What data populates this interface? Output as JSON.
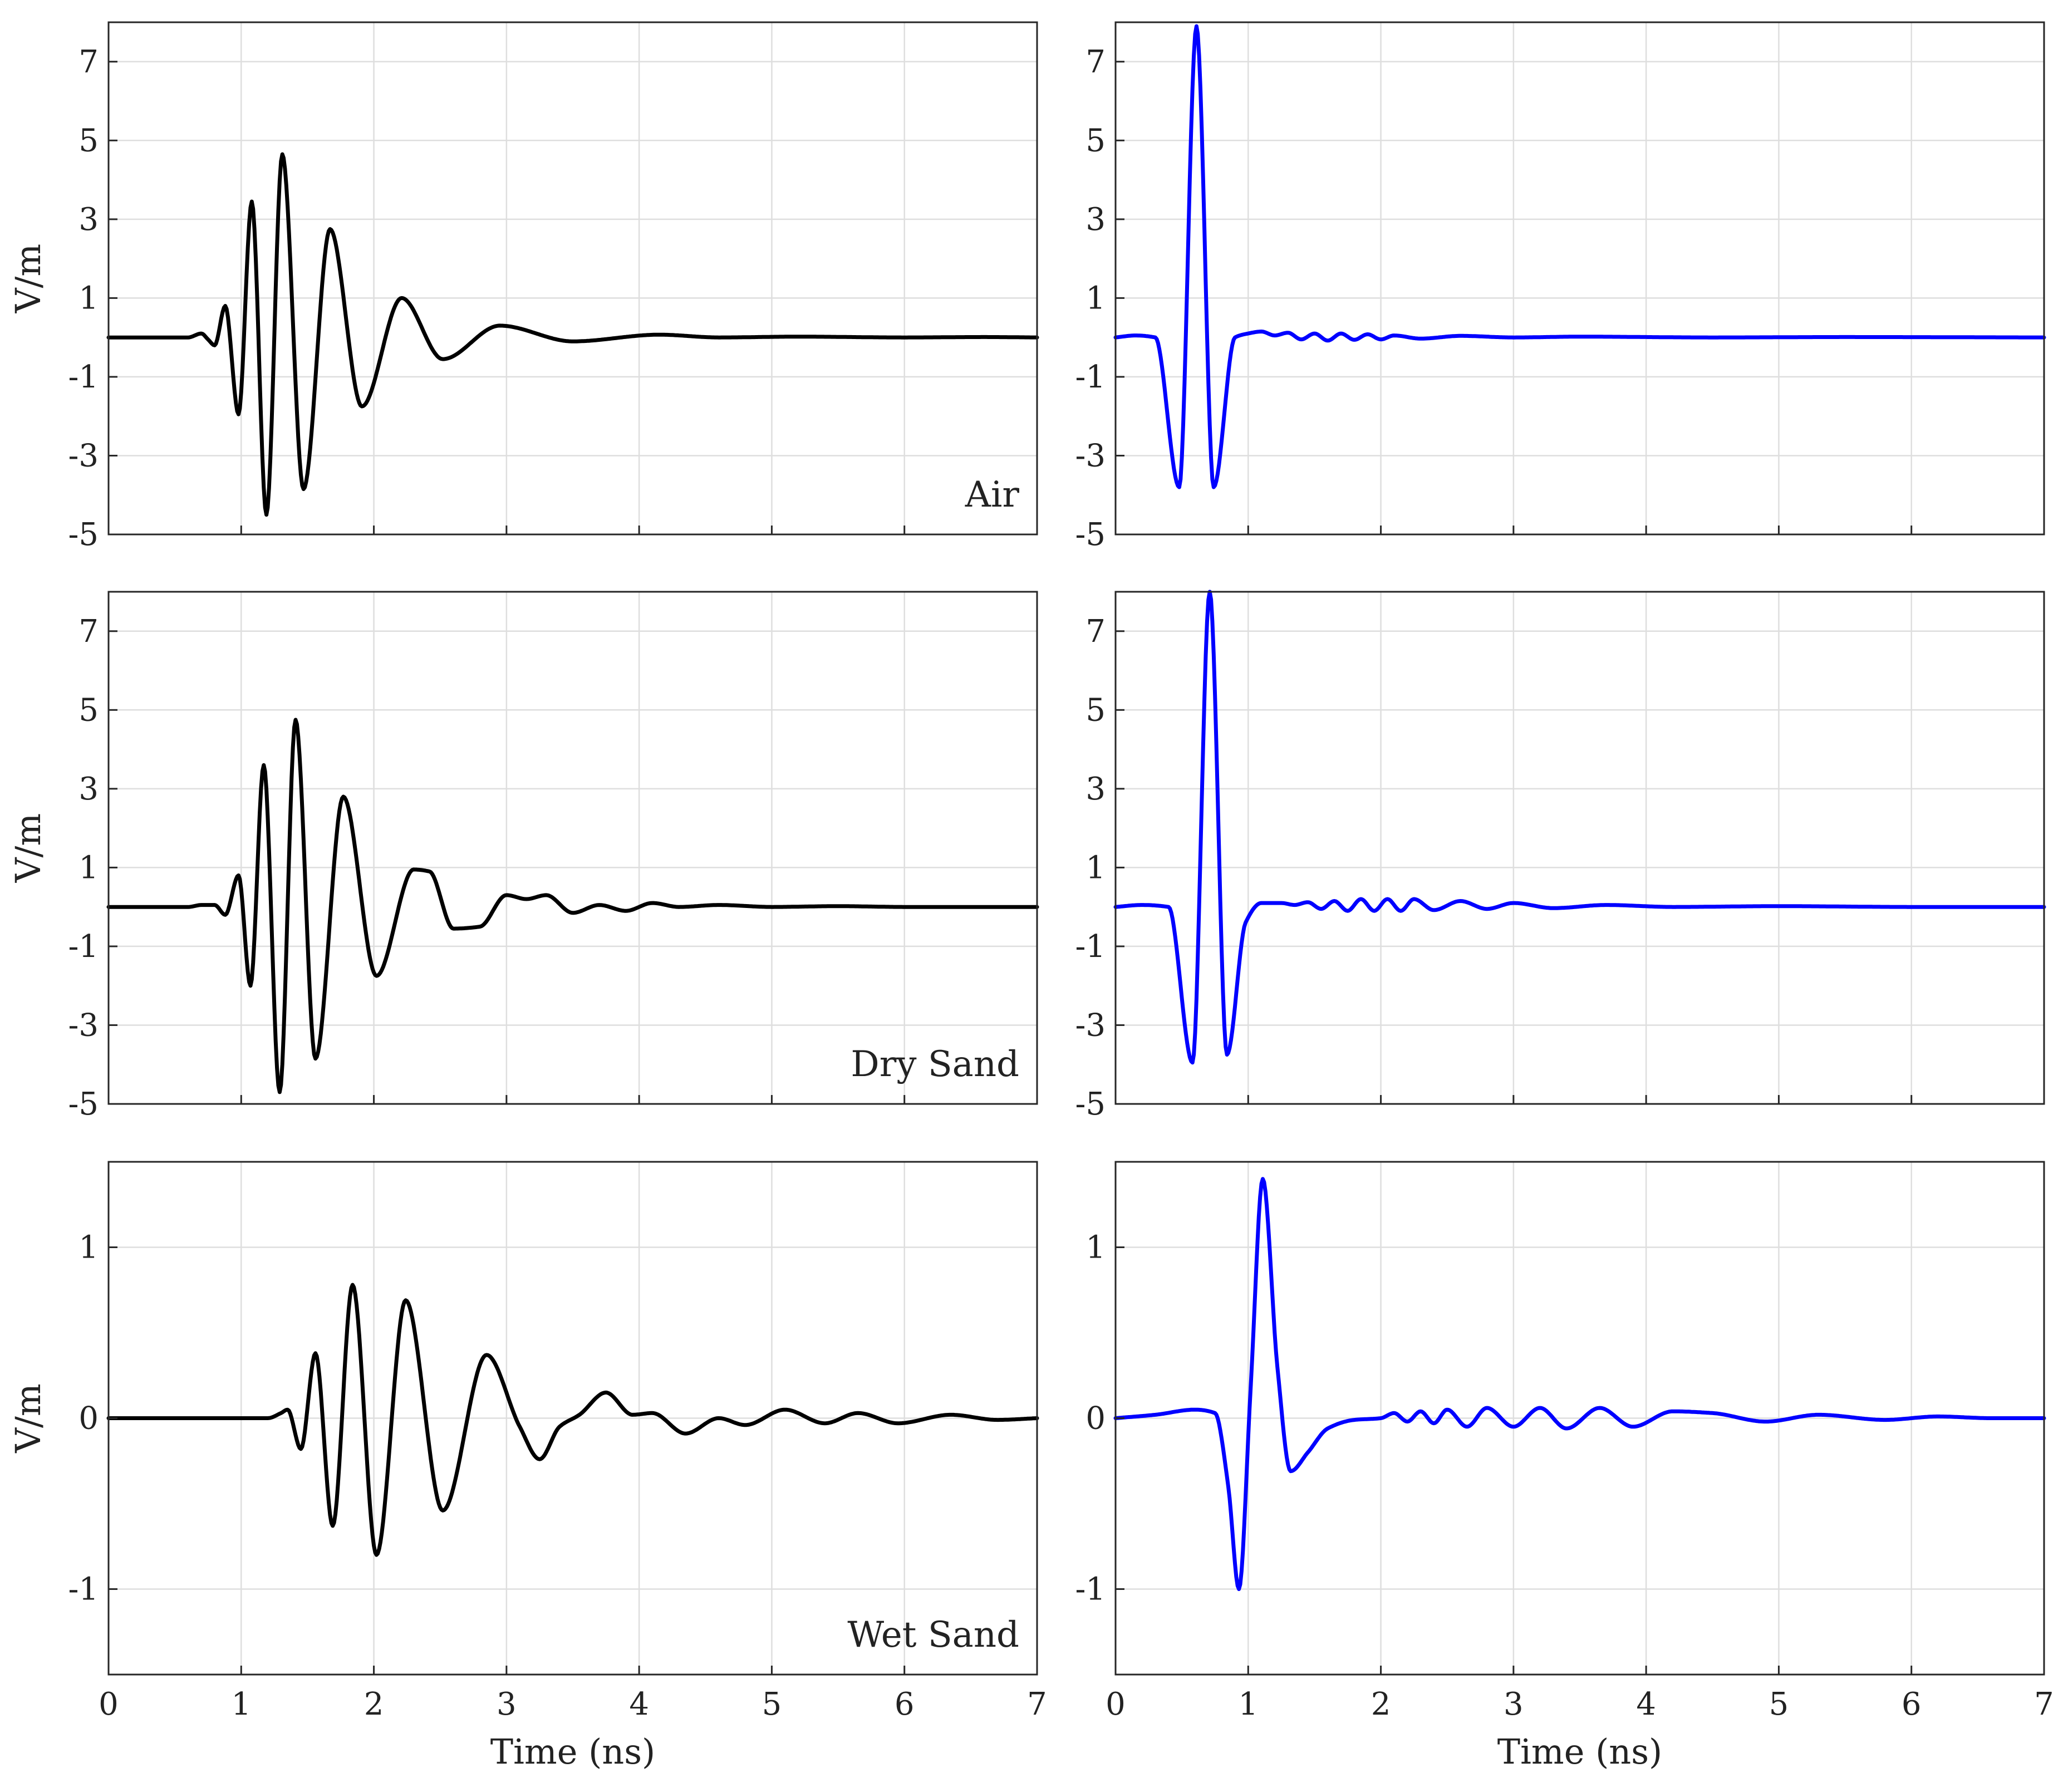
{
  "colors": {
    "left_trace": "#000000",
    "right_trace": "#0000ff",
    "grid": "#dedede",
    "frame": "#262626"
  },
  "chart_data": [
    {
      "type": "line",
      "row": 0,
      "col": 0,
      "panel_label": "Air",
      "ylabel": "V/m",
      "xlabel": "",
      "xlim": [
        0,
        7
      ],
      "ylim": [
        -5,
        8
      ],
      "yticks": [
        7,
        5,
        3,
        1,
        -1,
        -3,
        -5
      ],
      "xticks": [
        0,
        1,
        2,
        3,
        4,
        5,
        6,
        7
      ],
      "show_x_tick_labels": false,
      "color": "#000000",
      "grid": true,
      "series": [
        {
          "x": [
            0,
            0.6,
            0.7,
            0.75,
            0.8,
            0.88,
            0.98,
            1.08,
            1.19,
            1.31,
            1.47,
            1.67,
            1.91,
            2.21,
            2.52,
            2.95,
            3.5,
            4.15,
            4.6,
            5.2,
            6.0,
            6.6,
            7.0
          ],
          "y": [
            0,
            0,
            0.1,
            -0.05,
            -0.2,
            0.8,
            -1.95,
            3.45,
            -4.5,
            4.65,
            -3.85,
            2.75,
            -1.75,
            1.0,
            -0.55,
            0.3,
            -0.1,
            0.07,
            0,
            0.02,
            0,
            0.01,
            0
          ]
        }
      ]
    },
    {
      "type": "line",
      "row": 0,
      "col": 1,
      "panel_label": "",
      "ylabel": "",
      "xlabel": "",
      "xlim": [
        0,
        7
      ],
      "ylim": [
        -5,
        8
      ],
      "yticks": [
        7,
        5,
        3,
        1,
        -1,
        -3,
        -5
      ],
      "xticks": [
        0,
        1,
        2,
        3,
        4,
        5,
        6,
        7
      ],
      "show_x_tick_labels": false,
      "color": "#0000ff",
      "grid": true,
      "series": [
        {
          "x": [
            0,
            0.15,
            0.3,
            0.48,
            0.61,
            0.74,
            0.9,
            1.0,
            1.1,
            1.2,
            1.3,
            1.4,
            1.5,
            1.6,
            1.7,
            1.8,
            1.9,
            2.0,
            2.1,
            2.3,
            2.6,
            3.0,
            3.5,
            4.5,
            5.5,
            7.0
          ],
          "y": [
            0,
            0.05,
            0,
            -3.8,
            7.9,
            -3.8,
            0,
            0.1,
            0.15,
            0.05,
            0.12,
            -0.05,
            0.1,
            -0.08,
            0.1,
            -0.06,
            0.08,
            -0.05,
            0.05,
            -0.03,
            0.04,
            0,
            0.02,
            0,
            0.01,
            0
          ]
        }
      ]
    },
    {
      "type": "line",
      "row": 1,
      "col": 0,
      "panel_label": "Dry Sand",
      "ylabel": "V/m",
      "xlabel": "",
      "xlim": [
        0,
        7
      ],
      "ylim": [
        -5,
        8
      ],
      "yticks": [
        7,
        5,
        3,
        1,
        -1,
        -3,
        -5
      ],
      "xticks": [
        0,
        1,
        2,
        3,
        4,
        5,
        6,
        7
      ],
      "show_x_tick_labels": false,
      "color": "#000000",
      "grid": true,
      "series": [
        {
          "x": [
            0,
            0.6,
            0.7,
            0.8,
            0.88,
            0.98,
            1.07,
            1.17,
            1.29,
            1.41,
            1.56,
            1.77,
            2.02,
            2.3,
            2.42,
            2.6,
            2.8,
            3.0,
            3.15,
            3.3,
            3.5,
            3.7,
            3.9,
            4.1,
            4.3,
            4.6,
            5.0,
            5.5,
            6.0,
            7.0
          ],
          "y": [
            0,
            0,
            0.05,
            0.05,
            -0.2,
            0.8,
            -2.0,
            3.6,
            -4.7,
            4.75,
            -3.85,
            2.8,
            -1.75,
            0.95,
            0.9,
            -0.55,
            -0.5,
            0.3,
            0.2,
            0.3,
            -0.15,
            0.05,
            -0.1,
            0.1,
            0,
            0.05,
            0,
            0.02,
            0,
            0
          ]
        }
      ]
    },
    {
      "type": "line",
      "row": 1,
      "col": 1,
      "panel_label": "",
      "ylabel": "",
      "xlabel": "",
      "xlim": [
        0,
        7
      ],
      "ylim": [
        -5,
        8
      ],
      "yticks": [
        7,
        5,
        3,
        1,
        -1,
        -3,
        -5
      ],
      "xticks": [
        0,
        1,
        2,
        3,
        4,
        5,
        6,
        7
      ],
      "show_x_tick_labels": false,
      "color": "#0000ff",
      "grid": true,
      "series": [
        {
          "x": [
            0,
            0.2,
            0.4,
            0.58,
            0.71,
            0.84,
            0.98,
            1.1,
            1.25,
            1.35,
            1.45,
            1.55,
            1.65,
            1.75,
            1.85,
            1.95,
            2.05,
            2.15,
            2.25,
            2.4,
            2.6,
            2.8,
            3.0,
            3.3,
            3.7,
            4.2,
            5.0,
            6.0,
            7.0
          ],
          "y": [
            0,
            0.05,
            0,
            -3.95,
            8.0,
            -3.75,
            -0.4,
            0.1,
            0.1,
            0.05,
            0.12,
            -0.05,
            0.15,
            -0.1,
            0.2,
            -0.1,
            0.2,
            -0.1,
            0.2,
            -0.08,
            0.15,
            -0.05,
            0.1,
            -0.03,
            0.05,
            0,
            0.02,
            0,
            0
          ]
        }
      ]
    },
    {
      "type": "line",
      "row": 2,
      "col": 0,
      "panel_label": "Wet Sand",
      "ylabel": "V/m",
      "xlabel": "Time (ns)",
      "xlim": [
        0,
        7
      ],
      "ylim": [
        -1.5,
        1.5
      ],
      "yticks": [
        1,
        0,
        -1
      ],
      "xticks": [
        0,
        1,
        2,
        3,
        4,
        5,
        6,
        7
      ],
      "show_x_tick_labels": true,
      "color": "#000000",
      "grid": true,
      "series": [
        {
          "x": [
            0,
            1.0,
            1.2,
            1.3,
            1.35,
            1.45,
            1.56,
            1.69,
            1.84,
            2.02,
            2.24,
            2.52,
            2.85,
            3.1,
            3.25,
            3.4,
            3.55,
            3.75,
            3.95,
            4.1,
            4.35,
            4.6,
            4.8,
            5.1,
            5.4,
            5.65,
            5.95,
            6.35,
            6.7,
            7.0
          ],
          "y": [
            0,
            0,
            0,
            0.03,
            0.05,
            -0.18,
            0.38,
            -0.63,
            0.78,
            -0.8,
            0.69,
            -0.54,
            0.37,
            -0.05,
            -0.24,
            -0.05,
            0.02,
            0.15,
            0.02,
            0.03,
            -0.09,
            0,
            -0.04,
            0.05,
            -0.03,
            0.03,
            -0.03,
            0.02,
            -0.01,
            0
          ]
        }
      ]
    },
    {
      "type": "line",
      "row": 2,
      "col": 1,
      "panel_label": "",
      "ylabel": "",
      "xlabel": "Time (ns)",
      "xlim": [
        0,
        7
      ],
      "ylim": [
        -1.5,
        1.5
      ],
      "yticks": [
        1,
        0,
        -1
      ],
      "xticks": [
        0,
        1,
        2,
        3,
        4,
        5,
        6,
        7
      ],
      "show_x_tick_labels": true,
      "color": "#0000ff",
      "grid": true,
      "series": [
        {
          "x": [
            0,
            0.3,
            0.6,
            0.75,
            0.85,
            0.93,
            1.02,
            1.11,
            1.22,
            1.32,
            1.45,
            1.6,
            1.8,
            2.0,
            2.1,
            2.2,
            2.3,
            2.4,
            2.5,
            2.65,
            2.8,
            3.0,
            3.2,
            3.4,
            3.65,
            3.9,
            4.2,
            4.5,
            4.9,
            5.3,
            5.8,
            6.2,
            6.6,
            7.0
          ],
          "y": [
            0,
            0.02,
            0.05,
            0.03,
            -0.4,
            -1.0,
            0.2,
            1.4,
            0.3,
            -0.31,
            -0.2,
            -0.06,
            -0.01,
            0,
            0.03,
            -0.02,
            0.04,
            -0.03,
            0.05,
            -0.05,
            0.06,
            -0.05,
            0.06,
            -0.06,
            0.06,
            -0.05,
            0.04,
            0.03,
            -0.02,
            0.02,
            -0.01,
            0.01,
            0,
            0
          ]
        }
      ]
    }
  ]
}
